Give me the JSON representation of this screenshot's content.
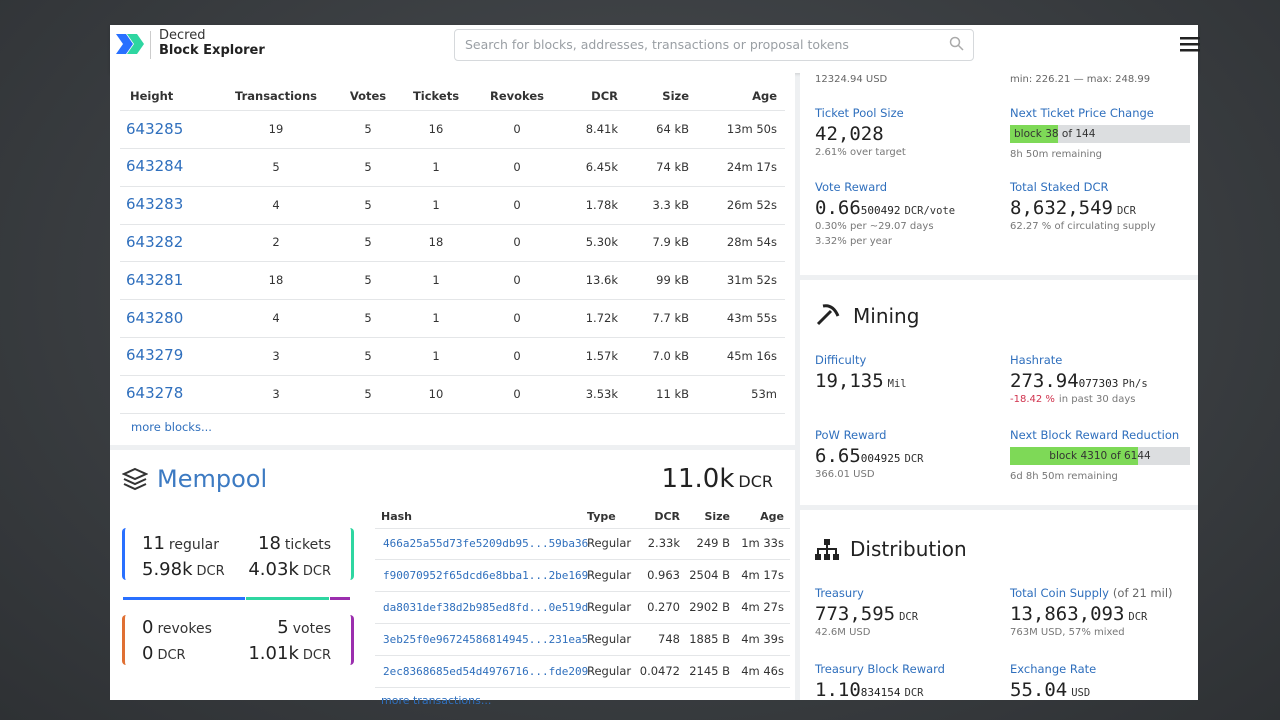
{
  "header": {
    "brand_top": "Decred",
    "brand_bottom": "Block Explorer",
    "search_placeholder": "Search for blocks, addresses, transactions or proposal tokens"
  },
  "blocks": {
    "columns": [
      "Height",
      "Transactions",
      "Votes",
      "Tickets",
      "Revokes",
      "DCR",
      "Size",
      "Age"
    ],
    "rows": [
      [
        "643285",
        "19",
        "5",
        "16",
        "0",
        "8.41k",
        "64 kB",
        "13m 50s"
      ],
      [
        "643284",
        "5",
        "5",
        "1",
        "0",
        "6.45k",
        "74 kB",
        "24m 17s"
      ],
      [
        "643283",
        "4",
        "5",
        "1",
        "0",
        "1.78k",
        "3.3 kB",
        "26m 52s"
      ],
      [
        "643282",
        "2",
        "5",
        "18",
        "0",
        "5.30k",
        "7.9 kB",
        "28m 54s"
      ],
      [
        "643281",
        "18",
        "5",
        "1",
        "0",
        "13.6k",
        "99 kB",
        "31m 52s"
      ],
      [
        "643280",
        "4",
        "5",
        "1",
        "0",
        "1.72k",
        "7.7 kB",
        "43m 55s"
      ],
      [
        "643279",
        "3",
        "5",
        "1",
        "0",
        "1.57k",
        "7.0 kB",
        "45m 16s"
      ],
      [
        "643278",
        "3",
        "5",
        "10",
        "0",
        "3.53k",
        "11 kB",
        "53m"
      ]
    ],
    "more": "more blocks..."
  },
  "mempool": {
    "title": "Mempool",
    "total": "11.0k",
    "total_unit": "DCR",
    "regular": {
      "count": "11",
      "label": "regular",
      "amount": "5.98k",
      "unit": "DCR"
    },
    "tickets": {
      "count": "18",
      "label": "tickets",
      "amount": "4.03k",
      "unit": "DCR"
    },
    "revokes": {
      "count": "0",
      "label": "revokes",
      "amount": "0",
      "unit": "DCR"
    },
    "votes": {
      "count": "5",
      "label": "votes",
      "amount": "1.01k",
      "unit": "DCR"
    },
    "columns": [
      "Hash",
      "Type",
      "DCR",
      "Size",
      "Age"
    ],
    "rows": [
      [
        "466a25a55d73fe5209db95...59ba36",
        "Regular",
        "2.33k",
        "249 B",
        "1m 33s"
      ],
      [
        "f90070952f65dcd6e8bba1...2be169",
        "Regular",
        "0.963",
        "2504 B",
        "4m 17s"
      ],
      [
        "da8031def38d2b985ed8fd...0e519d",
        "Regular",
        "0.270",
        "2902 B",
        "4m 27s"
      ],
      [
        "3eb25f0e96724586814945...231ea5",
        "Regular",
        "748",
        "1885 B",
        "4m 39s"
      ],
      [
        "2ec8368685ed54d4976716...fde209",
        "Regular",
        "0.0472",
        "2145 B",
        "4m 46s"
      ]
    ],
    "more": "more transactions..."
  },
  "staking": {
    "price_usd": "12324.94 USD",
    "price_range": "min: 226.21 — max: 248.99",
    "items": [
      {
        "label": "Ticket Pool Size",
        "value": "42,028",
        "notes": [
          "2.61% over target"
        ]
      },
      {
        "label": "Next Ticket Price Change",
        "progress": "block 38 of 144",
        "notes": [
          "8h 50m remaining"
        ]
      },
      {
        "label": "Vote Reward",
        "value": "0.66",
        "fraction": "500492",
        "unit": "DCR/vote",
        "notes": [
          "0.30% per ~29.07 days",
          "3.32% per year"
        ]
      },
      {
        "label": "Total Staked DCR",
        "value": "8,632,549",
        "unit": "DCR",
        "notes": [
          "62.27 % of circulating supply"
        ]
      }
    ]
  },
  "mining": {
    "title": "Mining",
    "items": [
      {
        "label": "Difficulty",
        "value": "19,135",
        "unit": "Mil"
      },
      {
        "label": "Hashrate",
        "value": "273.94",
        "fraction": "077303",
        "unit": "Ph/s",
        "highlight": "-18.42 %",
        "notes": [
          "in past 30 days"
        ]
      },
      {
        "label": "PoW Reward",
        "value": "6.65",
        "fraction": "004925",
        "unit": "DCR",
        "notes": [
          "366.01 USD"
        ]
      },
      {
        "label": "Next Block Reward Reduction",
        "progress": "block 4310 of 6144",
        "notes": [
          "6d 8h 50m remaining"
        ]
      }
    ]
  },
  "distribution": {
    "title": "Distribution",
    "items": [
      {
        "label": "Treasury",
        "value": "773,595",
        "unit": "DCR",
        "notes": [
          "42.6M USD"
        ]
      },
      {
        "label": "Total Coin Supply",
        "label_extra": "(of 21 mil)",
        "value": "13,863,093",
        "unit": "DCR",
        "notes": [
          "763M USD, 57% mixed"
        ]
      },
      {
        "label": "Treasury Block Reward",
        "value": "1.10",
        "fraction": "834154",
        "unit": "DCR"
      },
      {
        "label": "Exchange Rate",
        "value": "55.04",
        "unit": "USD"
      }
    ]
  }
}
